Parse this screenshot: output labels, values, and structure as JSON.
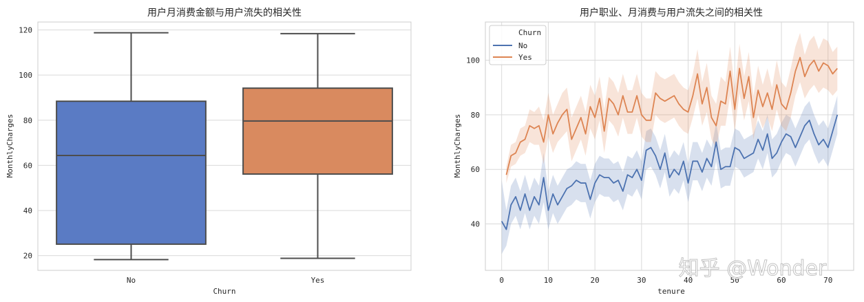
{
  "watermark": "知乎 @Wonder",
  "chart_data": [
    {
      "type": "box",
      "title": "用户月消费金额与用户流失的相关性",
      "xlabel": "Churn",
      "ylabel": "MonthlyCharges",
      "ylim": [
        13.5,
        123.5
      ],
      "yticks": [
        20,
        40,
        60,
        80,
        100,
        120
      ],
      "grid": true,
      "categories": [
        "No",
        "Yes"
      ],
      "boxes": [
        {
          "category": "No",
          "whisker_low": 18.25,
          "q1": 25.1,
          "median": 64.4,
          "q3": 88.4,
          "whisker_high": 118.75,
          "color": "#5a7bc4"
        },
        {
          "category": "Yes",
          "whisker_low": 18.85,
          "q1": 56.15,
          "median": 79.65,
          "q3": 94.2,
          "whisker_high": 118.35,
          "color": "#d98a5f"
        }
      ]
    },
    {
      "type": "line",
      "title": "用户职业、月消费与用户流失之间的相关性",
      "xlabel": "tenure",
      "ylabel": "MonthlyCharges",
      "xlim": [
        -3.5,
        75.5
      ],
      "ylim": [
        23,
        114
      ],
      "xticks": [
        0,
        10,
        20,
        30,
        40,
        50,
        60,
        70
      ],
      "yticks": [
        40,
        60,
        80,
        100
      ],
      "grid": true,
      "legend": {
        "title": "Churn",
        "placement": "top-left"
      },
      "x": [
        0,
        1,
        2,
        3,
        4,
        5,
        6,
        7,
        8,
        9,
        10,
        11,
        12,
        13,
        14,
        15,
        16,
        17,
        18,
        19,
        20,
        21,
        22,
        23,
        24,
        25,
        26,
        27,
        28,
        29,
        30,
        31,
        32,
        33,
        34,
        35,
        36,
        37,
        38,
        39,
        40,
        41,
        42,
        43,
        44,
        45,
        46,
        47,
        48,
        49,
        50,
        51,
        52,
        53,
        54,
        55,
        56,
        57,
        58,
        59,
        60,
        61,
        62,
        63,
        64,
        65,
        66,
        67,
        68,
        69,
        70,
        71,
        72
      ],
      "series": [
        {
          "name": "No",
          "color": "#4c72b0",
          "values": [
            41,
            38,
            47,
            50,
            45,
            51,
            45,
            50,
            47,
            57,
            45,
            51,
            47,
            50,
            53,
            54,
            56,
            55,
            55,
            49,
            55,
            58,
            57,
            57,
            55,
            56,
            52,
            58,
            57,
            60,
            56,
            67,
            68,
            65,
            60,
            66,
            57,
            60,
            58,
            63,
            55,
            63,
            63,
            59,
            64,
            61,
            70,
            60,
            61,
            61,
            68,
            67,
            64,
            65,
            66,
            71,
            67,
            73,
            64,
            66,
            70,
            73,
            72,
            68,
            72,
            76,
            78,
            73,
            69,
            71,
            68,
            74,
            80
          ],
          "ci_low": [
            29,
            32,
            40,
            43,
            38,
            44,
            38,
            43,
            40,
            48,
            38,
            44,
            40,
            43,
            46,
            47,
            49,
            48,
            48,
            42,
            48,
            51,
            50,
            50,
            48,
            49,
            45,
            51,
            50,
            53,
            49,
            60,
            61,
            58,
            53,
            59,
            50,
            53,
            51,
            56,
            48,
            56,
            56,
            52,
            57,
            54,
            63,
            53,
            54,
            54,
            61,
            60,
            57,
            58,
            59,
            64,
            60,
            66,
            57,
            59,
            63,
            66,
            65,
            61,
            65,
            69,
            71,
            66,
            62,
            64,
            61,
            67,
            73
          ],
          "ci_high": [
            56,
            45,
            54,
            57,
            52,
            58,
            52,
            57,
            54,
            66,
            52,
            58,
            54,
            57,
            60,
            61,
            63,
            62,
            62,
            56,
            62,
            65,
            64,
            64,
            62,
            63,
            59,
            65,
            64,
            67,
            63,
            74,
            75,
            72,
            67,
            73,
            64,
            67,
            65,
            70,
            62,
            70,
            70,
            66,
            71,
            68,
            77,
            67,
            68,
            68,
            75,
            74,
            71,
            72,
            73,
            78,
            74,
            80,
            71,
            73,
            77,
            80,
            79,
            75,
            79,
            83,
            85,
            80,
            76,
            78,
            75,
            81,
            87
          ]
        },
        {
          "name": "Yes",
          "color": "#dd8452",
          "values": [
            null,
            58,
            65,
            66,
            70,
            71,
            76,
            75,
            76,
            70,
            80,
            73,
            77,
            80,
            82,
            71,
            75,
            79,
            73,
            83,
            79,
            86,
            74,
            86,
            84,
            80,
            87,
            81,
            81,
            87,
            80,
            78,
            78,
            88,
            86,
            85,
            86,
            87,
            84,
            82,
            81,
            87,
            95,
            84,
            90,
            79,
            76,
            85,
            84,
            96,
            82,
            97,
            86,
            94,
            79,
            89,
            83,
            88,
            82,
            91,
            84,
            82,
            88,
            96,
            101,
            94,
            98,
            100,
            96,
            99,
            98,
            95,
            97
          ],
          "ci_low": [
            null,
            55,
            61,
            62,
            65,
            66,
            70,
            69,
            69,
            62,
            72,
            66,
            70,
            72,
            74,
            63,
            67,
            71,
            65,
            75,
            71,
            78,
            66,
            78,
            76,
            72,
            79,
            73,
            73,
            79,
            72,
            70,
            70,
            80,
            78,
            77,
            78,
            79,
            76,
            74,
            73,
            79,
            86,
            76,
            81,
            71,
            68,
            76,
            76,
            87,
            74,
            88,
            78,
            85,
            71,
            80,
            75,
            79,
            74,
            82,
            76,
            74,
            79,
            87,
            92,
            86,
            89,
            91,
            88,
            90,
            89,
            87,
            89
          ],
          "ci_high": [
            null,
            61,
            69,
            70,
            75,
            76,
            82,
            81,
            83,
            78,
            88,
            80,
            84,
            88,
            90,
            79,
            83,
            87,
            81,
            91,
            87,
            94,
            82,
            94,
            92,
            88,
            95,
            89,
            89,
            95,
            88,
            86,
            86,
            96,
            94,
            93,
            94,
            95,
            92,
            90,
            89,
            95,
            104,
            92,
            99,
            87,
            84,
            94,
            92,
            105,
            90,
            106,
            94,
            103,
            87,
            98,
            91,
            97,
            90,
            100,
            92,
            90,
            97,
            105,
            110,
            102,
            107,
            109,
            104,
            108,
            107,
            103,
            105
          ]
        }
      ]
    }
  ]
}
